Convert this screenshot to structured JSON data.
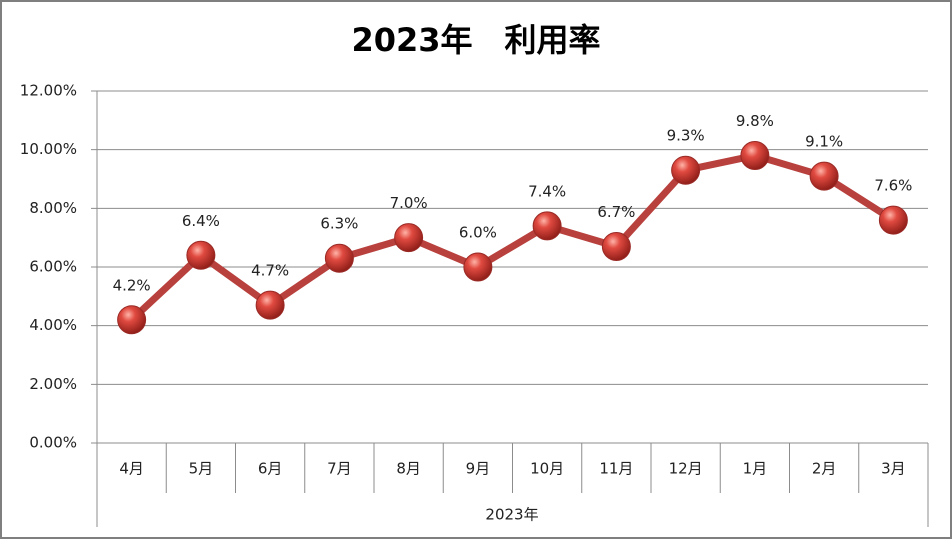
{
  "chart_data": {
    "type": "line",
    "title": "2023年　利用率",
    "x_label": "2023年",
    "categories": [
      "4月",
      "5月",
      "6月",
      "7月",
      "8月",
      "9月",
      "10月",
      "11月",
      "12月",
      "1月",
      "2月",
      "3月"
    ],
    "values": [
      4.2,
      6.4,
      4.7,
      6.3,
      7.0,
      6.0,
      7.4,
      6.7,
      9.3,
      9.8,
      9.1,
      7.6
    ],
    "value_labels": [
      "4.2%",
      "6.4%",
      "4.7%",
      "6.3%",
      "7.0%",
      "6.0%",
      "7.4%",
      "6.7%",
      "9.3%",
      "9.8%",
      "9.1%",
      "7.6%"
    ],
    "color": "#b8403d",
    "ylim": [
      0,
      12
    ],
    "yticks": [
      {
        "value": 0,
        "label": "0.00%"
      },
      {
        "value": 2,
        "label": "2.00%"
      },
      {
        "value": 4,
        "label": "4.00%"
      },
      {
        "value": 6,
        "label": "6.00%"
      },
      {
        "value": 8,
        "label": "8.00%"
      },
      {
        "value": 10,
        "label": "10.00%"
      },
      {
        "value": 12,
        "label": "12.00%"
      }
    ],
    "grid": true
  }
}
